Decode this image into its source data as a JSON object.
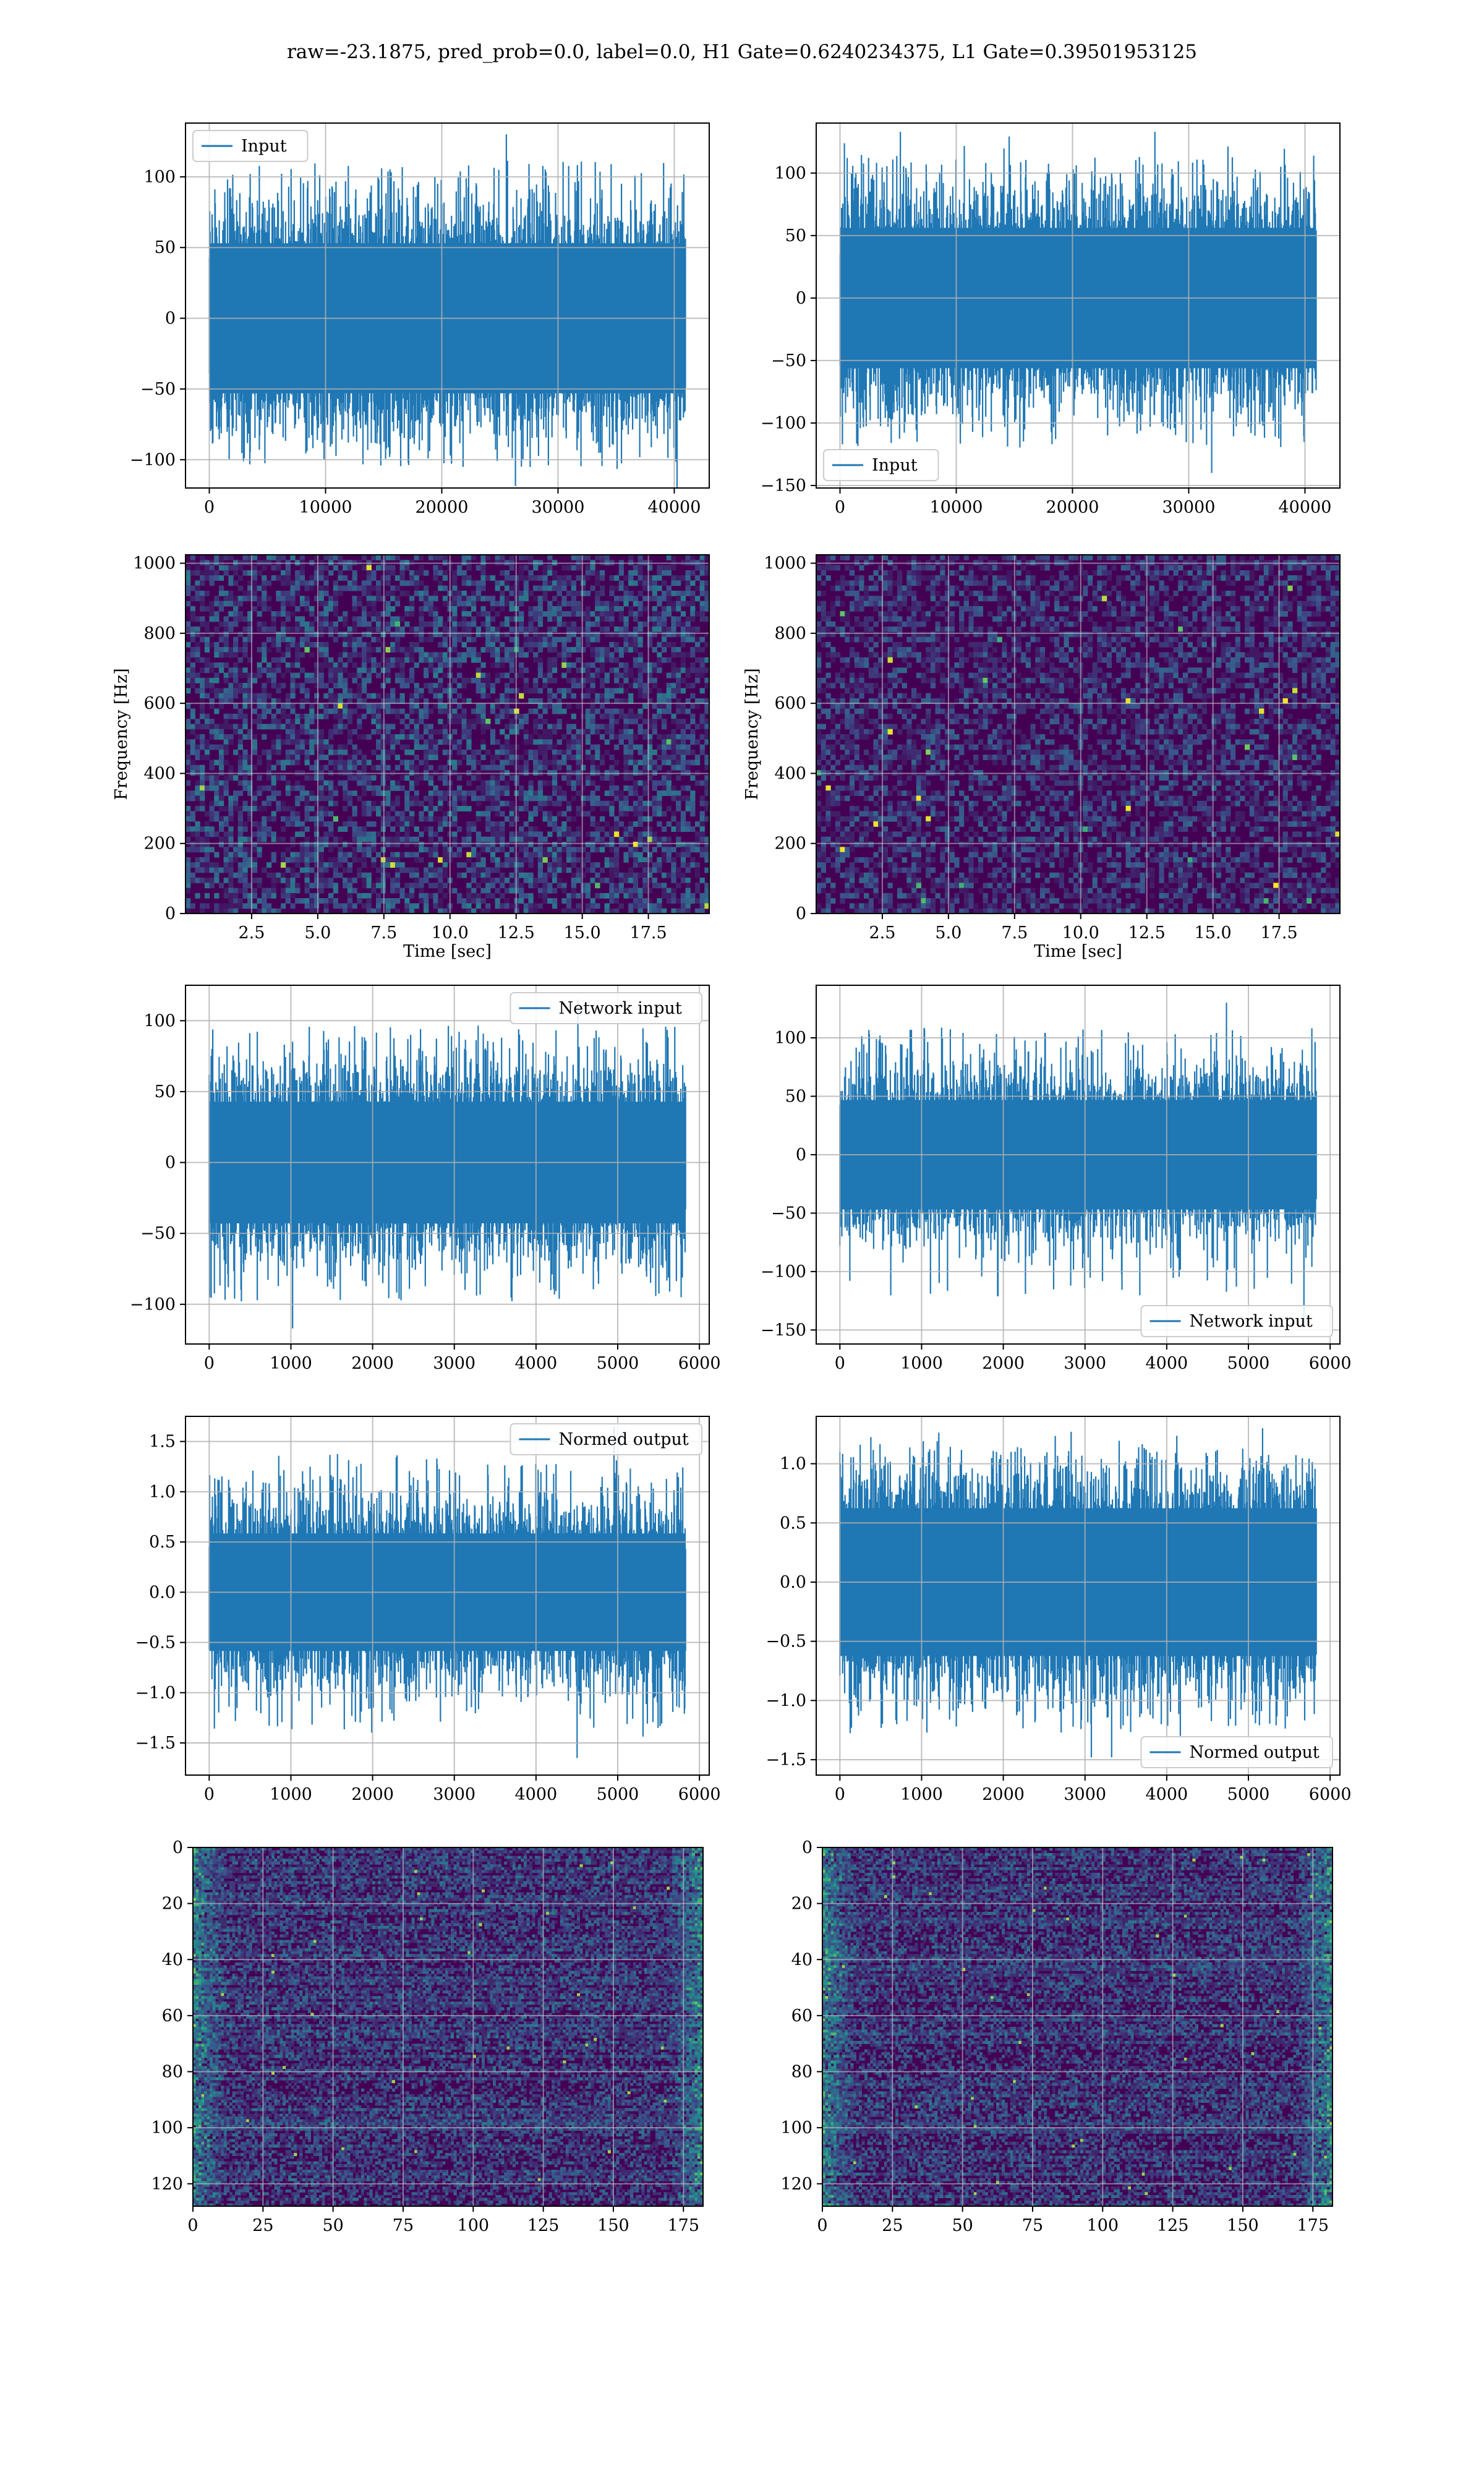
{
  "figure": {
    "suptitle": "raw=-23.1875, pred_prob=0.0, label=0.0, H1 Gate=0.6240234375, L1 Gate=0.39501953125"
  },
  "colors": {
    "series": "#1f77b4",
    "grid": "#b0b0b0",
    "heat_low": "#440154",
    "heat_mid": "#21918c",
    "heat_high": "#fde725"
  },
  "chart_data": [
    {
      "id": "r1c1",
      "type": "line",
      "title": "",
      "xlabel": "",
      "ylabel": "",
      "xlim": [
        -2048,
        43008
      ],
      "ylim": [
        -120,
        138
      ],
      "xticks": [
        0,
        10000,
        20000,
        30000,
        40000
      ],
      "xtick_labels": [
        "0",
        "10000",
        "20000",
        "30000",
        "40000"
      ],
      "yticks": [
        -100,
        -50,
        0,
        50,
        100
      ],
      "ytick_labels": [
        "−100",
        "−50",
        "0",
        "50",
        "100"
      ],
      "grid": true,
      "legend": "upper left",
      "series": [
        {
          "name": "Input",
          "x_range": [
            0,
            40960
          ],
          "typical": [
            -68,
            68
          ],
          "peak_max": 130,
          "peak_min": -122,
          "points": 40960
        }
      ]
    },
    {
      "id": "r1c2",
      "type": "line",
      "title": "",
      "xlabel": "",
      "ylabel": "",
      "xlim": [
        -2048,
        43008
      ],
      "ylim": [
        -152,
        140
      ],
      "xticks": [
        0,
        10000,
        20000,
        30000,
        40000
      ],
      "xtick_labels": [
        "0",
        "10000",
        "20000",
        "30000",
        "40000"
      ],
      "yticks": [
        -150,
        -100,
        -50,
        0,
        50,
        100
      ],
      "ytick_labels": [
        "−150",
        "−100",
        "−50",
        "0",
        "50",
        "100"
      ],
      "grid": true,
      "legend": "lower left",
      "series": [
        {
          "name": "Input",
          "x_range": [
            0,
            40960
          ],
          "typical": [
            -72,
            72
          ],
          "peak_max": 133,
          "peak_min": -140,
          "points": 40960
        }
      ]
    },
    {
      "id": "r2c1",
      "type": "heatmap",
      "title": "",
      "xlabel": "Time [sec]",
      "ylabel": "Frequency [Hz]",
      "xlim": [
        0,
        19.8
      ],
      "ylim": [
        0,
        1024
      ],
      "xticks": [
        2.5,
        5.0,
        7.5,
        10.0,
        12.5,
        15.0,
        17.5
      ],
      "xtick_labels": [
        "2.5",
        "5.0",
        "7.5",
        "10.0",
        "12.5",
        "15.0",
        "17.5"
      ],
      "yticks": [
        0,
        200,
        400,
        600,
        800,
        1000
      ],
      "ytick_labels": [
        "0",
        "200",
        "400",
        "600",
        "800",
        "1000"
      ],
      "grid": true,
      "colormap": "viridis"
    },
    {
      "id": "r2c2",
      "type": "heatmap",
      "title": "",
      "xlabel": "Time [sec]",
      "ylabel": "Frequency [Hz]",
      "xlim": [
        0,
        19.8
      ],
      "ylim": [
        0,
        1024
      ],
      "xticks": [
        2.5,
        5.0,
        7.5,
        10.0,
        12.5,
        15.0,
        17.5
      ],
      "xtick_labels": [
        "2.5",
        "5.0",
        "7.5",
        "10.0",
        "12.5",
        "15.0",
        "17.5"
      ],
      "yticks": [
        0,
        200,
        400,
        600,
        800,
        1000
      ],
      "ytick_labels": [
        "0",
        "200",
        "400",
        "600",
        "800",
        "1000"
      ],
      "grid": true,
      "colormap": "viridis"
    },
    {
      "id": "r3c1",
      "type": "line",
      "title": "",
      "xlabel": "",
      "ylabel": "",
      "xlim": [
        -290,
        6120
      ],
      "ylim": [
        -128,
        125
      ],
      "xticks": [
        0,
        1000,
        2000,
        3000,
        4000,
        5000,
        6000
      ],
      "xtick_labels": [
        "0",
        "1000",
        "2000",
        "3000",
        "4000",
        "5000",
        "6000"
      ],
      "yticks": [
        -100,
        -50,
        0,
        50,
        100
      ],
      "ytick_labels": [
        "−100",
        "−50",
        "0",
        "50",
        "100"
      ],
      "grid": true,
      "legend": "upper right",
      "series": [
        {
          "name": "Network input",
          "x_range": [
            0,
            5830
          ],
          "typical": [
            -55,
            55
          ],
          "peak_max": 115,
          "peak_min": -117,
          "points": 5830
        }
      ]
    },
    {
      "id": "r3c2",
      "type": "line",
      "title": "",
      "xlabel": "",
      "ylabel": "",
      "xlim": [
        -290,
        6120
      ],
      "ylim": [
        -162,
        145
      ],
      "xticks": [
        0,
        1000,
        2000,
        3000,
        4000,
        5000,
        6000
      ],
      "xtick_labels": [
        "0",
        "1000",
        "2000",
        "3000",
        "4000",
        "5000",
        "6000"
      ],
      "yticks": [
        -150,
        -100,
        -50,
        0,
        50,
        100
      ],
      "ytick_labels": [
        "−150",
        "−100",
        "−50",
        "0",
        "50",
        "100"
      ],
      "grid": true,
      "legend": "lower right",
      "series": [
        {
          "name": "Network input",
          "x_range": [
            0,
            5830
          ],
          "typical": [
            -60,
            60
          ],
          "peak_max": 130,
          "peak_min": -148,
          "points": 5830
        }
      ]
    },
    {
      "id": "r4c1",
      "type": "line",
      "title": "",
      "xlabel": "",
      "ylabel": "",
      "xlim": [
        -290,
        6120
      ],
      "ylim": [
        -1.82,
        1.75
      ],
      "xticks": [
        0,
        1000,
        2000,
        3000,
        4000,
        5000,
        6000
      ],
      "xtick_labels": [
        "0",
        "1000",
        "2000",
        "3000",
        "4000",
        "5000",
        "6000"
      ],
      "yticks": [
        -1.5,
        -1.0,
        -0.5,
        0.0,
        0.5,
        1.0,
        1.5
      ],
      "ytick_labels": [
        "−1.5",
        "−1.0",
        "−0.5",
        "0.0",
        "0.5",
        "1.0",
        "1.5"
      ],
      "grid": true,
      "legend": "upper right",
      "series": [
        {
          "name": "Normed output",
          "x_range": [
            0,
            5830
          ],
          "typical": [
            -0.75,
            0.75
          ],
          "peak_max": 1.65,
          "peak_min": -1.65,
          "points": 5830
        }
      ]
    },
    {
      "id": "r4c2",
      "type": "line",
      "title": "",
      "xlabel": "",
      "ylabel": "",
      "xlim": [
        -290,
        6120
      ],
      "ylim": [
        -1.63,
        1.4
      ],
      "xticks": [
        0,
        1000,
        2000,
        3000,
        4000,
        5000,
        6000
      ],
      "xtick_labels": [
        "0",
        "1000",
        "2000",
        "3000",
        "4000",
        "5000",
        "6000"
      ],
      "yticks": [
        -1.5,
        -1.0,
        -0.5,
        0.0,
        0.5,
        1.0
      ],
      "ytick_labels": [
        "−1.5",
        "−1.0",
        "−0.5",
        "0.0",
        "0.5",
        "1.0"
      ],
      "grid": true,
      "legend": "lower right",
      "series": [
        {
          "name": "Normed output",
          "x_range": [
            0,
            5830
          ],
          "typical": [
            -0.8,
            0.8
          ],
          "peak_max": 1.3,
          "peak_min": -1.48,
          "points": 5830
        }
      ]
    },
    {
      "id": "r5c1",
      "type": "heatmap",
      "title": "",
      "xlabel": "",
      "ylabel": "",
      "xlim": [
        0,
        182
      ],
      "ylim": [
        128,
        0
      ],
      "xticks": [
        0,
        25,
        50,
        75,
        100,
        125,
        150,
        175
      ],
      "xtick_labels": [
        "0",
        "25",
        "50",
        "75",
        "100",
        "125",
        "150",
        "175"
      ],
      "yticks": [
        0,
        20,
        40,
        60,
        80,
        100,
        120
      ],
      "ytick_labels": [
        "0",
        "20",
        "40",
        "60",
        "80",
        "100",
        "120"
      ],
      "grid": true,
      "colormap": "viridis",
      "rows": 128,
      "cols": 182
    },
    {
      "id": "r5c2",
      "type": "heatmap",
      "title": "",
      "xlabel": "",
      "ylabel": "",
      "xlim": [
        0,
        182
      ],
      "ylim": [
        128,
        0
      ],
      "xticks": [
        0,
        25,
        50,
        75,
        100,
        125,
        150,
        175
      ],
      "xtick_labels": [
        "0",
        "25",
        "50",
        "75",
        "100",
        "125",
        "150",
        "175"
      ],
      "yticks": [
        0,
        20,
        40,
        60,
        80,
        100,
        120
      ],
      "ytick_labels": [
        "0",
        "20",
        "40",
        "60",
        "80",
        "100",
        "120"
      ],
      "grid": true,
      "colormap": "viridis",
      "rows": 128,
      "cols": 182
    }
  ]
}
